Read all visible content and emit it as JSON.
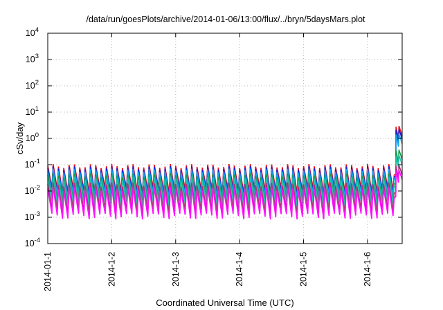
{
  "chart_data": {
    "type": "line",
    "title": "/data/run/goesPlots/archive/2014-01-06/13:00/flux/../bryn/5daysMars.plot",
    "xlabel": "Coordinated Universal Time (UTC)",
    "ylabel": "cSv/day",
    "yscale": "log",
    "ylim": [
      0.0001,
      10000
    ],
    "xlim": [
      "2014-01-01 00:00",
      "2014-01-06 13:00"
    ],
    "grid": true,
    "y_ticks": [
      {
        "base": "10",
        "exp": "4"
      },
      {
        "base": "10",
        "exp": "3"
      },
      {
        "base": "10",
        "exp": "2"
      },
      {
        "base": "10",
        "exp": "1"
      },
      {
        "base": "10",
        "exp": "0"
      },
      {
        "base": "10",
        "exp": "-1"
      },
      {
        "base": "10",
        "exp": "-2"
      },
      {
        "base": "10",
        "exp": "-3"
      },
      {
        "base": "10",
        "exp": "-4"
      }
    ],
    "x_ticks": [
      "2014-01-1",
      "2014-1-2",
      "2014-1-3",
      "2014-1-4",
      "2014-1-5",
      "2014-1-6"
    ],
    "cycle_hours": 2,
    "series": [
      {
        "color": "#e8141e",
        "peak": 0.09,
        "trough": 0.011,
        "storm_peak": 2.8
      },
      {
        "color": "#1f1fd2",
        "peak": 0.075,
        "trough": 0.008,
        "storm_peak": 2.1
      },
      {
        "color": "#11aaee",
        "peak": 0.06,
        "trough": 0.0065,
        "storm_peak": 1.4
      },
      {
        "color": "#10a050",
        "peak": 0.04,
        "trough": 0.004,
        "storm_peak": 0.35
      },
      {
        "color": "#22c4aa",
        "peak": 0.03,
        "trough": 0.0032,
        "storm_peak": 0.22
      },
      {
        "color": "#b0307a",
        "peak": 0.018,
        "trough": 0.0018,
        "storm_peak": 0.09
      },
      {
        "color": "#ff11ff",
        "peak": 0.012,
        "trough": 0.0011,
        "storm_peak": 0.06
      }
    ],
    "storm_start": "2014-01-06 10:00"
  }
}
